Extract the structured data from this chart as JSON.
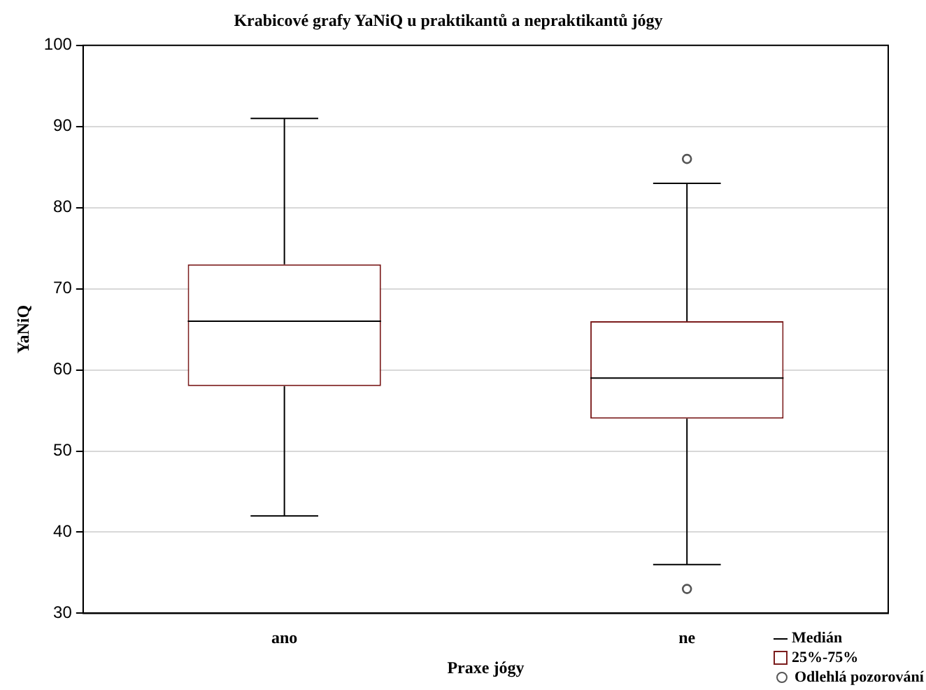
{
  "chart_data": {
    "type": "box",
    "title": "Krabicové grafy YaNiQ u praktikantů a nepraktikantů jógy",
    "xlabel": "Praxe jógy",
    "ylabel": "YaNiQ",
    "categories": [
      "ano",
      "ne"
    ],
    "color": "#7b1c1c",
    "boxes": [
      {
        "low": 42,
        "q1": 58,
        "median": 66,
        "q3": 73,
        "high": 91
      },
      {
        "low": 36,
        "q1": 54,
        "median": 59,
        "q3": 66,
        "high": 83,
        "outliers": [
          86,
          33
        ]
      }
    ],
    "ylim": [
      30,
      100
    ],
    "yticks": [
      30,
      40,
      50,
      60,
      70,
      80,
      90,
      100
    ],
    "grid": "y",
    "annotations": [
      "Medián",
      "25%-75%",
      "Odlehlá pozorování"
    ]
  }
}
